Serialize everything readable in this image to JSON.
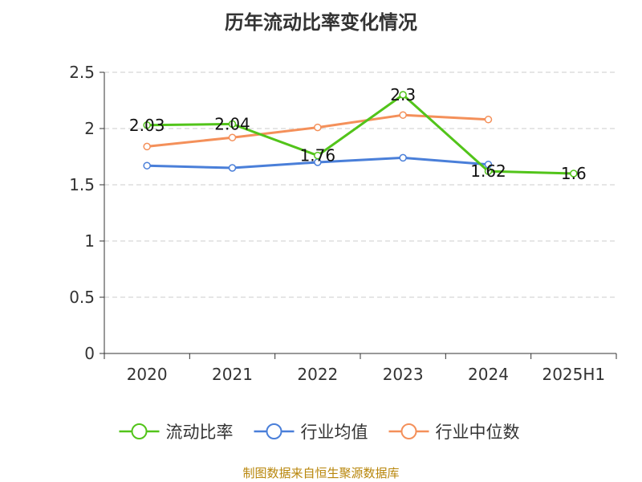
{
  "title": "历年流动比率变化情况",
  "source": "制图数据来自恒生聚源数据库",
  "chart_data": {
    "type": "line",
    "title": "历年流动比率变化情况",
    "categories": [
      "2020",
      "2021",
      "2022",
      "2023",
      "2024",
      "2025H1"
    ],
    "ylim": [
      0,
      2.5
    ],
    "yticks": [
      0,
      0.5,
      1,
      1.5,
      2,
      2.5
    ],
    "ytick_labels": [
      "0",
      "0.5",
      "1",
      "1.5",
      "2",
      "2.5"
    ],
    "grid": true,
    "legend_position": "bottom",
    "series": [
      {
        "name": "流动比率",
        "color": "#52c41a",
        "values": [
          2.03,
          2.04,
          1.76,
          2.3,
          1.62,
          1.6
        ],
        "labels": [
          "2.03",
          "2.04",
          "1.76",
          "2.3",
          "1.62",
          "1.6"
        ]
      },
      {
        "name": "行业均值",
        "color": "#4a7fd9",
        "values": [
          1.67,
          1.65,
          1.7,
          1.74,
          1.68,
          null
        ]
      },
      {
        "name": "行业中位数",
        "color": "#f4905a",
        "values": [
          1.84,
          1.92,
          2.01,
          2.12,
          2.08,
          null
        ]
      }
    ]
  }
}
